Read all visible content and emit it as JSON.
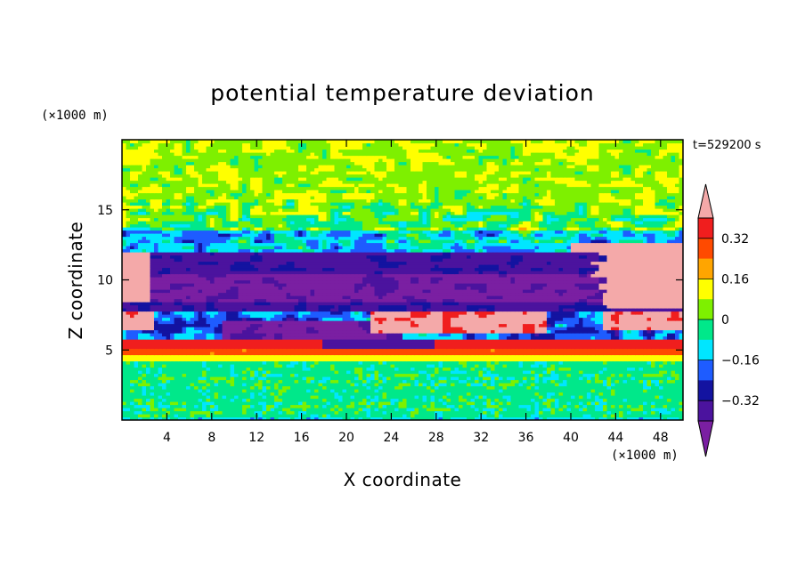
{
  "chart_data": {
    "type": "heatmap",
    "title": "potential temperature deviation",
    "xlabel": "X coordinate",
    "ylabel": "Z coordinate",
    "x_unit": "(×1000 m)",
    "y_unit": "(×1000 m)",
    "time_label": "t=529200 s",
    "xlim": [
      0,
      50
    ],
    "ylim": [
      0,
      20
    ],
    "x_ticks": [
      4,
      8,
      12,
      16,
      20,
      24,
      28,
      32,
      36,
      40,
      44,
      48
    ],
    "y_ticks": [
      5,
      10,
      15
    ],
    "colorbar": {
      "levels": [
        -0.4,
        -0.32,
        -0.24,
        -0.16,
        -0.08,
        0,
        0.08,
        0.16,
        0.24,
        0.32,
        0.4
      ],
      "colors": [
        "#7a1fa2",
        "#4b139e",
        "#1313a0",
        "#1e5cff",
        "#00e6ff",
        "#00e88a",
        "#7ef000",
        "#ffff00",
        "#ffa500",
        "#ff4a00",
        "#f01e1e",
        "#f4a9a9"
      ],
      "tick_labels": [
        "0.32",
        "0.16",
        "0",
        "−0.16",
        "−0.32"
      ],
      "tick_values": [
        0.32,
        0.16,
        0,
        -0.16,
        -0.32
      ]
    },
    "layers": [
      {
        "z": [
          0,
          4.3
        ],
        "pattern": "noisy",
        "values": [
          -0.08,
          0.0
        ]
      },
      {
        "z": [
          4.3,
          4.7
        ],
        "value": 0.12
      },
      {
        "z": [
          4.7,
          5.2
        ],
        "value": 0.26
      },
      {
        "z": [
          5.2,
          5.8
        ],
        "value": 0.36
      },
      {
        "z": [
          5.8,
          7.8
        ],
        "value": -0.34,
        "note": "mixed"
      },
      {
        "z": [
          7.8,
          12.0
        ],
        "value": -0.36,
        "note": "strong negative core"
      },
      {
        "z": [
          12.0,
          13.5
        ],
        "value": -0.12
      },
      {
        "z": [
          13.5,
          20.0
        ],
        "value": 0.04
      }
    ]
  }
}
